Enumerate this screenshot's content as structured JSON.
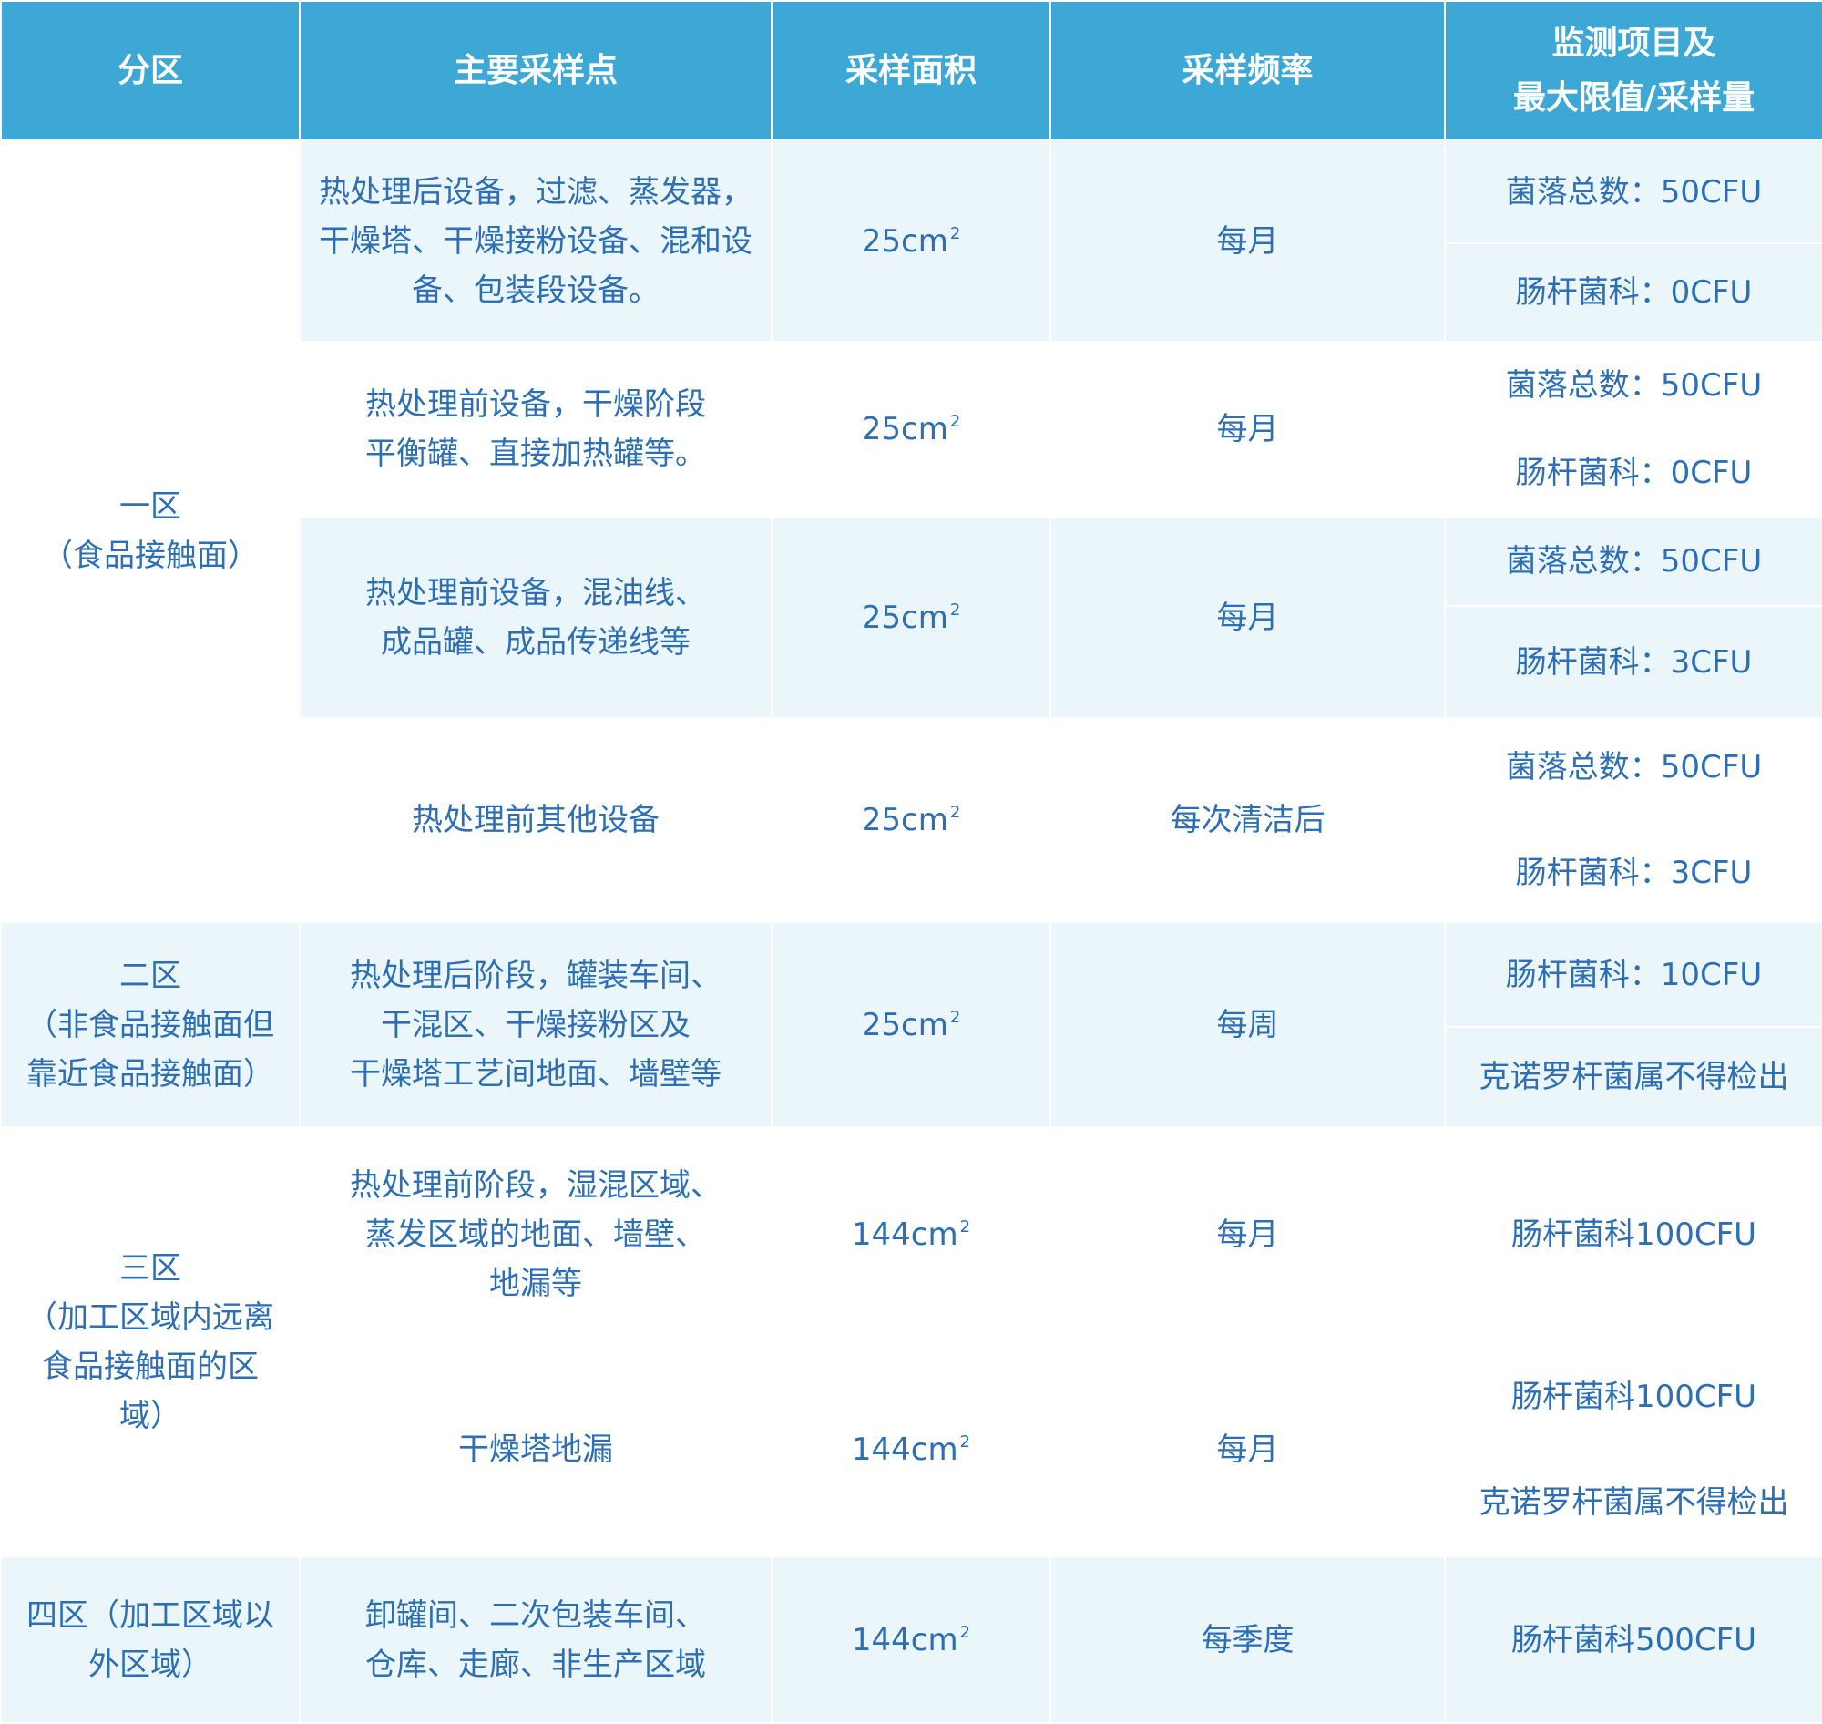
{
  "header": [
    "分区",
    "主要采样点",
    "采样面积",
    "采样频率",
    "监测项目及",
    "最大限值/采样量"
  ],
  "zones": {
    "z1": [
      "一区",
      "（食品接触面）"
    ],
    "z2": [
      "二区",
      "（非食品接触面但",
      "靠近食品接触面）"
    ],
    "z3": [
      "三区",
      "（加工区域内远离",
      "食品接触面的区",
      "域）"
    ],
    "z4": [
      "四区（加工区域以",
      "外区域）"
    ]
  },
  "rows": [
    {
      "site": [
        "热处理后设备，过滤、蒸发器，",
        "干燥塔、干燥接粉设备、混和设",
        "备、包装段设备。"
      ],
      "area": "25cm",
      "freq": "每月",
      "limits": [
        "菌落总数：50CFU",
        "肠杆菌科：0CFU"
      ]
    },
    {
      "site": [
        "热处理前设备，干燥阶段",
        "平衡罐、直接加热罐等。"
      ],
      "area": "25cm",
      "freq": "每月",
      "limits": [
        "菌落总数：50CFU",
        "肠杆菌科：0CFU"
      ]
    },
    {
      "site": [
        "热处理前设备，混油线、",
        "成品罐、成品传递线等"
      ],
      "area": "25cm",
      "freq": "每月",
      "limits": [
        "菌落总数：50CFU",
        "肠杆菌科：3CFU"
      ]
    },
    {
      "site": [
        "热处理前其他设备"
      ],
      "area": "25cm",
      "freq": "每次清洁后",
      "limits": [
        "菌落总数：50CFU",
        "肠杆菌科：3CFU"
      ]
    },
    {
      "site": [
        "热处理后阶段，罐装车间、",
        "干混区、干燥接粉区及",
        "干燥塔工艺间地面、墙壁等"
      ],
      "area": "25cm",
      "freq": "每周",
      "limits": [
        "肠杆菌科：10CFU",
        "克诺罗杆菌属不得检出"
      ]
    },
    {
      "site": [
        "热处理前阶段，湿混区域、",
        "蒸发区域的地面、墙壁、",
        "地漏等"
      ],
      "area": "144cm",
      "freq": "每月",
      "limits": [
        "肠杆菌科100CFU"
      ]
    },
    {
      "site": [
        "干燥塔地漏"
      ],
      "area": "144cm",
      "freq": "每月",
      "limits": [
        "肠杆菌科100CFU",
        "克诺罗杆菌属不得检出"
      ]
    },
    {
      "site": [
        "卸罐间、二次包装车间、",
        "仓库、走廊、非生产区域"
      ],
      "area": "144cm",
      "freq": "每季度",
      "limits": [
        "肠杆菌科500CFU"
      ]
    }
  ],
  "area_exponent": "2",
  "colors": {
    "header_bg": "#3da8d6",
    "alt_row_bg": "#ebf6fb",
    "text": "#2c6fb4"
  }
}
